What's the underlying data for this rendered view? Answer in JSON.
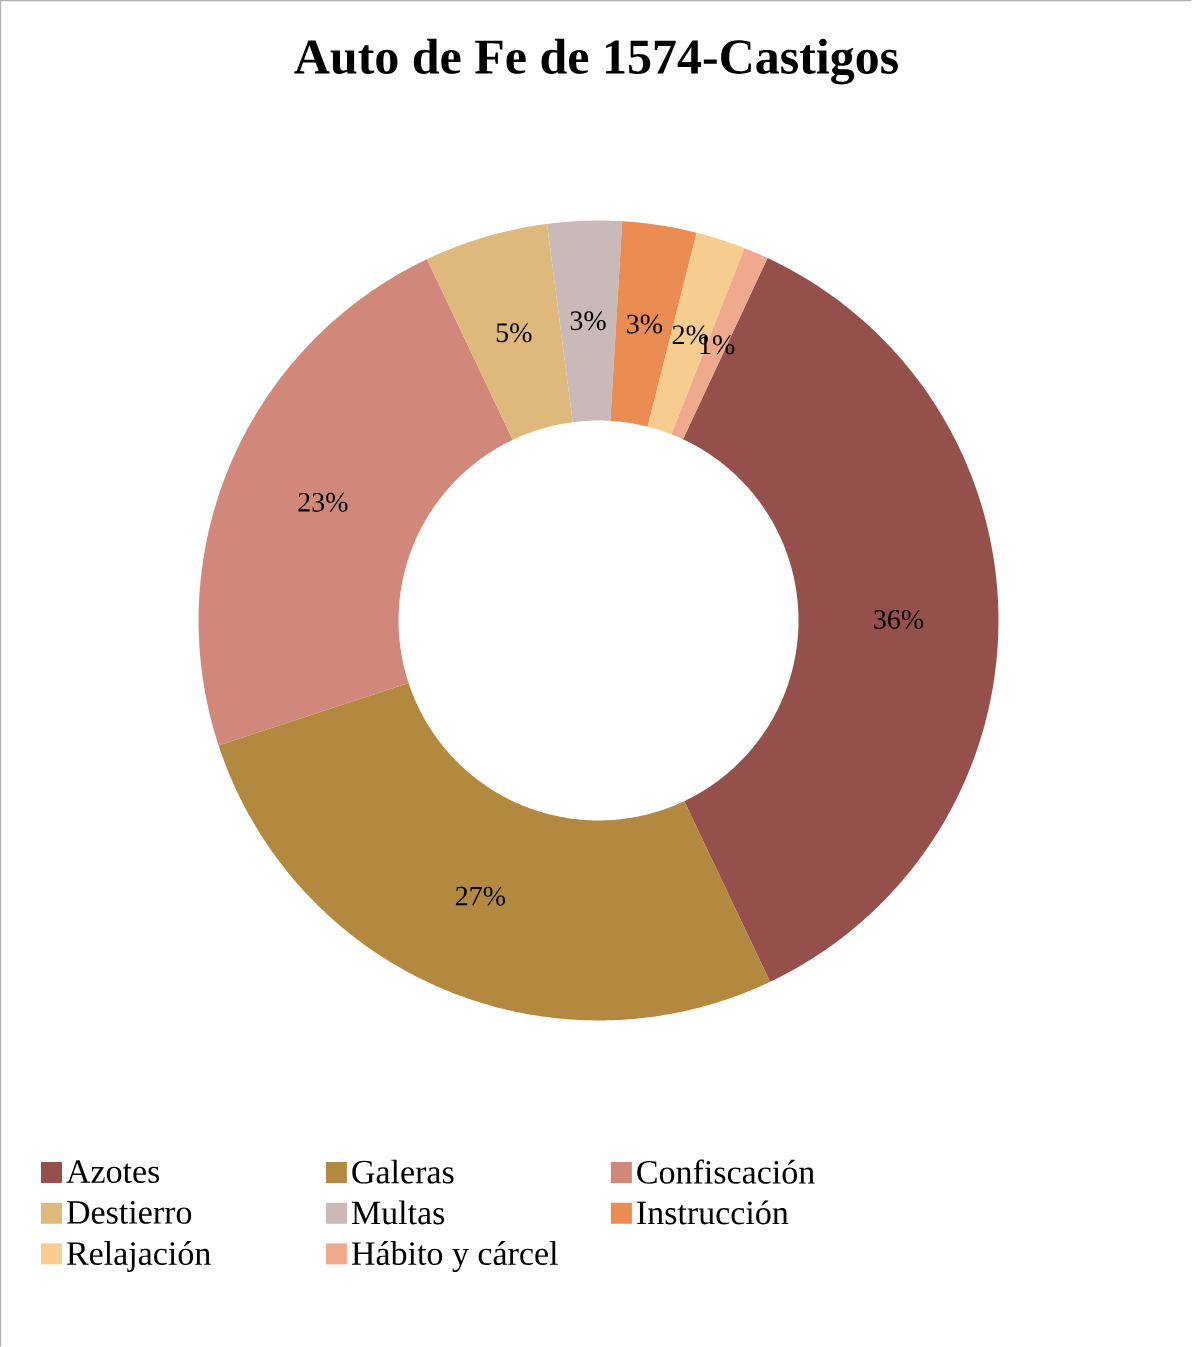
{
  "chart_data": {
    "type": "donut",
    "title": "Auto de Fe de 1574-Castigos",
    "categories": [
      "Azotes",
      "Galeras",
      "Confiscación",
      "Destierro",
      "Multas",
      "Instrucción",
      "Relajación",
      "Hábito y cárcel"
    ],
    "values": [
      36,
      27,
      23,
      5,
      3,
      3,
      2,
      1
    ],
    "value_labels": [
      "36%",
      "27%",
      "23%",
      "5%",
      "3%",
      "3%",
      "2%",
      "1%"
    ],
    "colors": [
      "#96504b",
      "#b3893f",
      "#d1887a",
      "#dfb97c",
      "#c9b9b8",
      "#eb8c52",
      "#f7cc8f",
      "#f0a98c"
    ],
    "legend": "bottom"
  }
}
